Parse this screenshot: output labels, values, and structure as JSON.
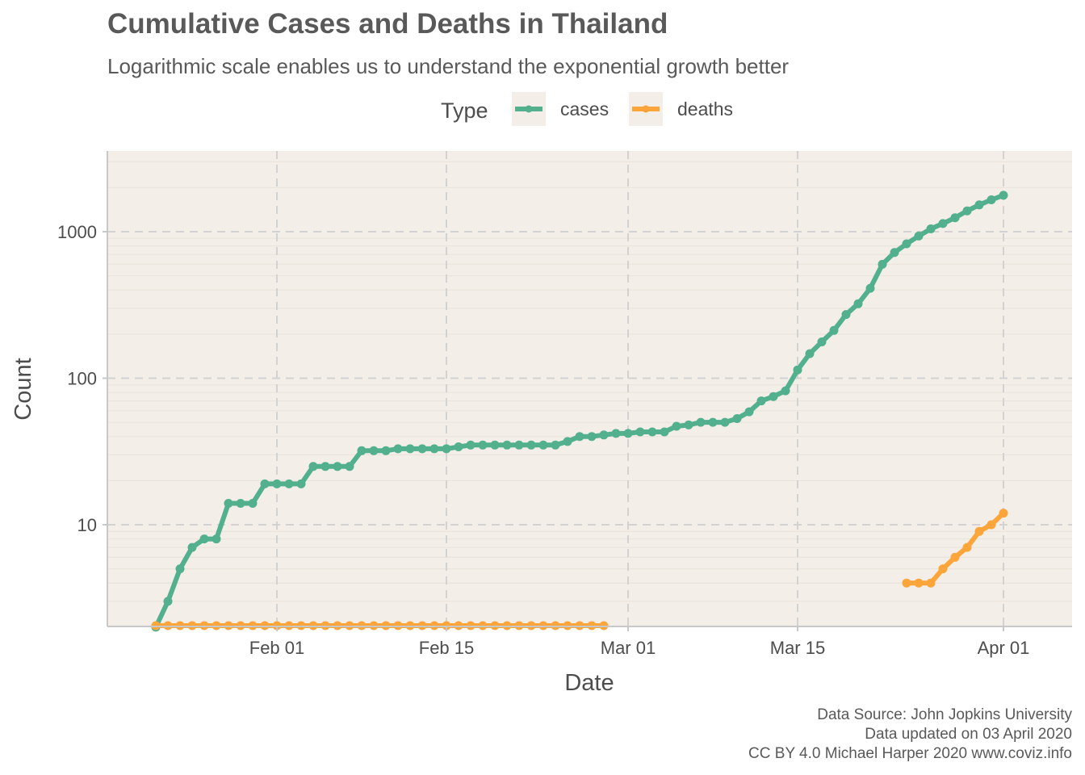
{
  "title": "Cumulative Cases and Deaths in Thailand",
  "subtitle": "Logarithmic scale enables us to understand the exponential growth better",
  "caption": [
    "Data Source: John Jopkins University",
    "Data updated on 03 April 2020",
    "CC BY 4.0 Michael Harper 2020 www.coviz.info"
  ],
  "colors": {
    "cases": "#52b08f",
    "deaths": "#fca53a",
    "panel": "#f3eee7",
    "grid": "#d2d2d2"
  },
  "chart_data": {
    "type": "line",
    "title": "Cumulative Cases and Deaths in Thailand",
    "subtitle": "Logarithmic scale enables us to understand the exponential growth better",
    "xlabel": "Date",
    "ylabel": "Count",
    "yscale": "log10",
    "ylim": [
      0,
      3000
    ],
    "xlim": [
      "2020-01-19",
      "2020-04-04"
    ],
    "grid": true,
    "legend": {
      "title": "Type",
      "position": "top"
    },
    "x_ticks": [
      {
        "date": "2020-02-01",
        "label": "Feb 01"
      },
      {
        "date": "2020-02-15",
        "label": "Feb 15"
      },
      {
        "date": "2020-03-01",
        "label": "Mar 01"
      },
      {
        "date": "2020-03-15",
        "label": "Mar 15"
      },
      {
        "date": "2020-04-01",
        "label": "Apr 01"
      }
    ],
    "y_ticks": [
      {
        "value": 10,
        "label": "10"
      },
      {
        "value": 100,
        "label": "100"
      },
      {
        "value": 1000,
        "label": "1000"
      }
    ],
    "series": [
      {
        "name": "cases",
        "points": [
          [
            "2020-01-22",
            2
          ],
          [
            "2020-01-23",
            3
          ],
          [
            "2020-01-24",
            5
          ],
          [
            "2020-01-25",
            7
          ],
          [
            "2020-01-26",
            8
          ],
          [
            "2020-01-27",
            8
          ],
          [
            "2020-01-28",
            14
          ],
          [
            "2020-01-29",
            14
          ],
          [
            "2020-01-30",
            14
          ],
          [
            "2020-01-31",
            19
          ],
          [
            "2020-02-01",
            19
          ],
          [
            "2020-02-02",
            19
          ],
          [
            "2020-02-03",
            19
          ],
          [
            "2020-02-04",
            25
          ],
          [
            "2020-02-05",
            25
          ],
          [
            "2020-02-06",
            25
          ],
          [
            "2020-02-07",
            25
          ],
          [
            "2020-02-08",
            32
          ],
          [
            "2020-02-09",
            32
          ],
          [
            "2020-02-10",
            32
          ],
          [
            "2020-02-11",
            33
          ],
          [
            "2020-02-12",
            33
          ],
          [
            "2020-02-13",
            33
          ],
          [
            "2020-02-14",
            33
          ],
          [
            "2020-02-15",
            33
          ],
          [
            "2020-02-16",
            34
          ],
          [
            "2020-02-17",
            35
          ],
          [
            "2020-02-18",
            35
          ],
          [
            "2020-02-19",
            35
          ],
          [
            "2020-02-20",
            35
          ],
          [
            "2020-02-21",
            35
          ],
          [
            "2020-02-22",
            35
          ],
          [
            "2020-02-23",
            35
          ],
          [
            "2020-02-24",
            35
          ],
          [
            "2020-02-25",
            37
          ],
          [
            "2020-02-26",
            40
          ],
          [
            "2020-02-27",
            40
          ],
          [
            "2020-02-28",
            41
          ],
          [
            "2020-02-29",
            42
          ],
          [
            "2020-03-01",
            42
          ],
          [
            "2020-03-02",
            43
          ],
          [
            "2020-03-03",
            43
          ],
          [
            "2020-03-04",
            43
          ],
          [
            "2020-03-05",
            47
          ],
          [
            "2020-03-06",
            48
          ],
          [
            "2020-03-07",
            50
          ],
          [
            "2020-03-08",
            50
          ],
          [
            "2020-03-09",
            50
          ],
          [
            "2020-03-10",
            53
          ],
          [
            "2020-03-11",
            59
          ],
          [
            "2020-03-12",
            70
          ],
          [
            "2020-03-13",
            75
          ],
          [
            "2020-03-14",
            82
          ],
          [
            "2020-03-15",
            114
          ],
          [
            "2020-03-16",
            147
          ],
          [
            "2020-03-17",
            177
          ],
          [
            "2020-03-18",
            212
          ],
          [
            "2020-03-19",
            272
          ],
          [
            "2020-03-20",
            322
          ],
          [
            "2020-03-21",
            411
          ],
          [
            "2020-03-22",
            599
          ],
          [
            "2020-03-23",
            721
          ],
          [
            "2020-03-24",
            827
          ],
          [
            "2020-03-25",
            934
          ],
          [
            "2020-03-26",
            1045
          ],
          [
            "2020-03-27",
            1136
          ],
          [
            "2020-03-28",
            1245
          ],
          [
            "2020-03-29",
            1388
          ],
          [
            "2020-03-30",
            1524
          ],
          [
            "2020-03-31",
            1651
          ],
          [
            "2020-04-01",
            1771
          ]
        ]
      },
      {
        "name": "deaths",
        "points": [
          [
            "2020-01-22",
            0
          ],
          [
            "2020-01-23",
            0
          ],
          [
            "2020-01-24",
            0
          ],
          [
            "2020-01-25",
            0
          ],
          [
            "2020-01-26",
            0
          ],
          [
            "2020-01-27",
            0
          ],
          [
            "2020-01-28",
            0
          ],
          [
            "2020-01-29",
            0
          ],
          [
            "2020-01-30",
            0
          ],
          [
            "2020-01-31",
            0
          ],
          [
            "2020-02-01",
            0
          ],
          [
            "2020-02-02",
            0
          ],
          [
            "2020-02-03",
            0
          ],
          [
            "2020-02-04",
            0
          ],
          [
            "2020-02-05",
            0
          ],
          [
            "2020-02-06",
            0
          ],
          [
            "2020-02-07",
            0
          ],
          [
            "2020-02-08",
            0
          ],
          [
            "2020-02-09",
            0
          ],
          [
            "2020-02-10",
            0
          ],
          [
            "2020-02-11",
            0
          ],
          [
            "2020-02-12",
            0
          ],
          [
            "2020-02-13",
            0
          ],
          [
            "2020-02-14",
            0
          ],
          [
            "2020-02-15",
            0
          ],
          [
            "2020-02-16",
            0
          ],
          [
            "2020-02-17",
            0
          ],
          [
            "2020-02-18",
            0
          ],
          [
            "2020-02-19",
            0
          ],
          [
            "2020-02-20",
            0
          ],
          [
            "2020-02-21",
            0
          ],
          [
            "2020-02-22",
            0
          ],
          [
            "2020-02-23",
            0
          ],
          [
            "2020-02-24",
            0
          ],
          [
            "2020-02-25",
            0
          ],
          [
            "2020-02-26",
            0
          ],
          [
            "2020-02-27",
            0
          ],
          [
            "2020-02-28",
            0
          ],
          [
            "2020-03-24",
            4
          ],
          [
            "2020-03-25",
            4
          ],
          [
            "2020-03-26",
            4
          ],
          [
            "2020-03-27",
            5
          ],
          [
            "2020-03-28",
            6
          ],
          [
            "2020-03-29",
            7
          ],
          [
            "2020-03-30",
            9
          ],
          [
            "2020-03-31",
            10
          ],
          [
            "2020-04-01",
            12
          ]
        ]
      }
    ]
  }
}
